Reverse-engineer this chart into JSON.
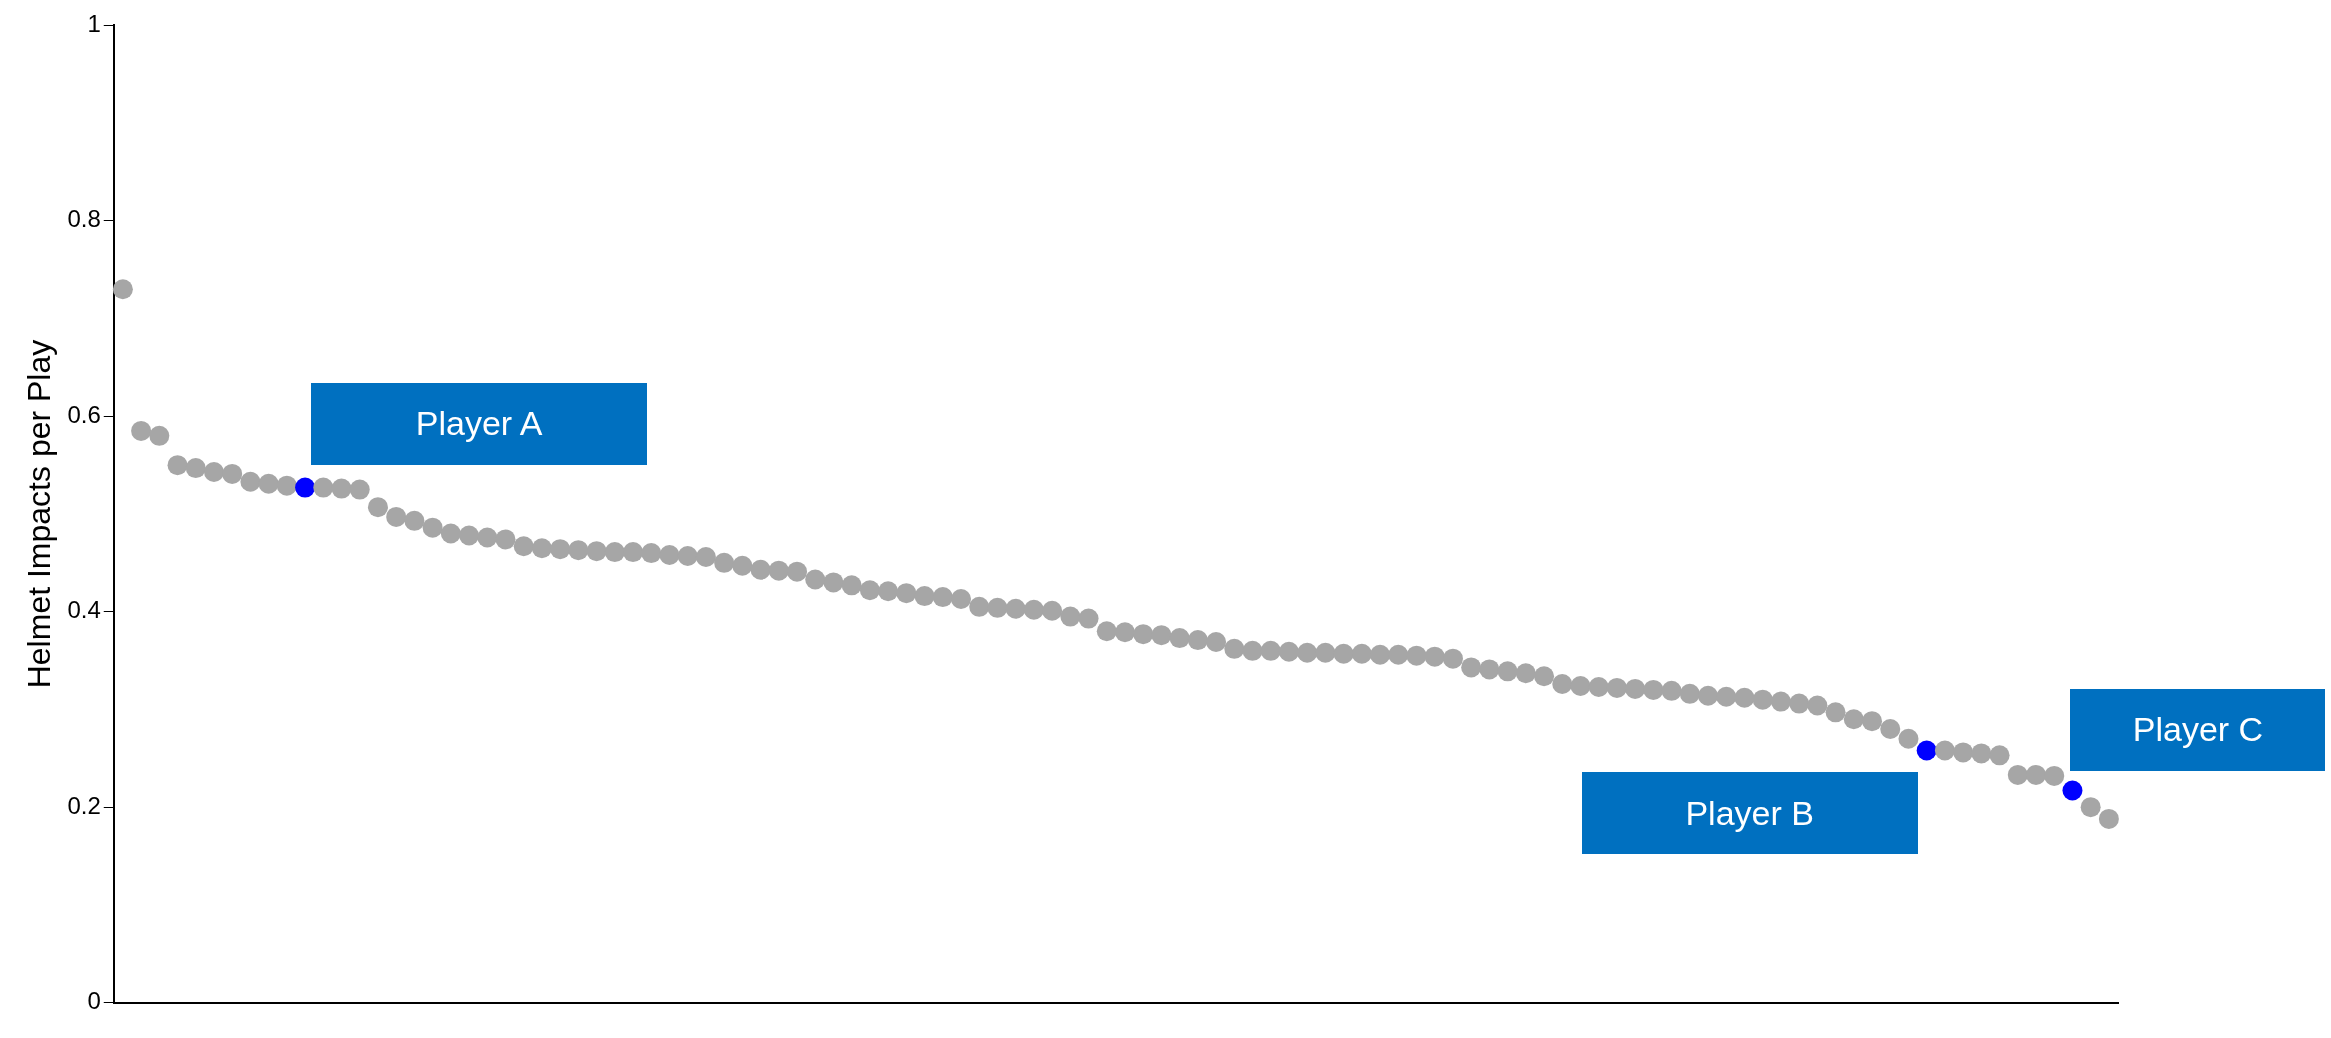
{
  "chart_data": {
    "type": "scatter",
    "ylabel": "Helmet Impacts per Play",
    "categories": [
      null,
      null,
      null,
      null,
      null,
      null,
      null,
      null,
      null,
      null,
      null,
      null,
      null,
      null,
      null,
      null,
      null,
      null,
      null,
      null,
      null,
      null,
      null,
      null,
      null,
      null,
      null,
      null,
      null,
      null,
      null,
      null,
      null,
      null,
      null,
      null,
      null,
      null,
      null,
      null,
      null,
      null,
      null,
      null,
      null,
      null,
      null,
      null,
      null,
      null,
      null,
      null,
      null,
      null,
      null,
      null,
      null,
      null,
      null,
      null,
      null,
      null,
      null,
      null,
      null,
      null,
      null,
      null,
      null,
      null,
      null,
      null,
      null,
      null,
      null,
      null,
      null,
      null,
      null,
      null,
      null,
      null,
      null,
      null,
      null,
      null,
      null,
      null,
      null,
      null,
      null,
      null,
      null,
      null,
      null,
      null,
      null,
      null,
      null,
      null,
      null,
      null,
      null,
      null,
      null,
      null,
      null,
      null,
      null,
      null
    ],
    "values": [
      0.73,
      0.585,
      0.58,
      0.55,
      0.547,
      0.543,
      0.541,
      0.533,
      0.531,
      0.529,
      0.527,
      0.527,
      0.526,
      0.525,
      0.507,
      0.497,
      0.493,
      0.486,
      0.48,
      0.478,
      0.476,
      0.474,
      0.467,
      0.465,
      0.464,
      0.463,
      0.462,
      0.461,
      0.461,
      0.46,
      0.458,
      0.457,
      0.456,
      0.45,
      0.447,
      0.443,
      0.442,
      0.441,
      0.433,
      0.43,
      0.427,
      0.422,
      0.421,
      0.419,
      0.416,
      0.415,
      0.413,
      0.405,
      0.404,
      0.403,
      0.402,
      0.401,
      0.395,
      0.393,
      0.38,
      0.379,
      0.377,
      0.376,
      0.373,
      0.371,
      0.369,
      0.362,
      0.36,
      0.36,
      0.359,
      0.358,
      0.358,
      0.357,
      0.357,
      0.356,
      0.356,
      0.355,
      0.354,
      0.352,
      0.343,
      0.341,
      0.339,
      0.337,
      0.334,
      0.326,
      0.324,
      0.323,
      0.322,
      0.321,
      0.32,
      0.319,
      0.316,
      0.314,
      0.313,
      0.312,
      0.31,
      0.308,
      0.306,
      0.304,
      0.297,
      0.29,
      0.288,
      0.28,
      0.27,
      0.258,
      0.258,
      0.256,
      0.255,
      0.253,
      0.233,
      0.233,
      0.232,
      0.217,
      0.2,
      0.188
    ],
    "colors": [
      "#a6a6a6",
      "#a6a6a6",
      "#a6a6a6",
      "#a6a6a6",
      "#a6a6a6",
      "#a6a6a6",
      "#a6a6a6",
      "#a6a6a6",
      "#a6a6a6",
      "#a6a6a6",
      "#0000ff",
      "#a6a6a6",
      "#a6a6a6",
      "#a6a6a6",
      "#a6a6a6",
      "#a6a6a6",
      "#a6a6a6",
      "#a6a6a6",
      "#a6a6a6",
      "#a6a6a6",
      "#a6a6a6",
      "#a6a6a6",
      "#a6a6a6",
      "#a6a6a6",
      "#a6a6a6",
      "#a6a6a6",
      "#a6a6a6",
      "#a6a6a6",
      "#a6a6a6",
      "#a6a6a6",
      "#a6a6a6",
      "#a6a6a6",
      "#a6a6a6",
      "#a6a6a6",
      "#a6a6a6",
      "#a6a6a6",
      "#a6a6a6",
      "#a6a6a6",
      "#a6a6a6",
      "#a6a6a6",
      "#a6a6a6",
      "#a6a6a6",
      "#a6a6a6",
      "#a6a6a6",
      "#a6a6a6",
      "#a6a6a6",
      "#a6a6a6",
      "#a6a6a6",
      "#a6a6a6",
      "#a6a6a6",
      "#a6a6a6",
      "#a6a6a6",
      "#a6a6a6",
      "#a6a6a6",
      "#a6a6a6",
      "#a6a6a6",
      "#a6a6a6",
      "#a6a6a6",
      "#a6a6a6",
      "#a6a6a6",
      "#a6a6a6",
      "#a6a6a6",
      "#a6a6a6",
      "#a6a6a6",
      "#a6a6a6",
      "#a6a6a6",
      "#a6a6a6",
      "#a6a6a6",
      "#a6a6a6",
      "#a6a6a6",
      "#a6a6a6",
      "#a6a6a6",
      "#a6a6a6",
      "#a6a6a6",
      "#a6a6a6",
      "#a6a6a6",
      "#a6a6a6",
      "#a6a6a6",
      "#a6a6a6",
      "#a6a6a6",
      "#a6a6a6",
      "#a6a6a6",
      "#a6a6a6",
      "#a6a6a6",
      "#a6a6a6",
      "#a6a6a6",
      "#a6a6a6",
      "#a6a6a6",
      "#a6a6a6",
      "#a6a6a6",
      "#a6a6a6",
      "#a6a6a6",
      "#a6a6a6",
      "#a6a6a6",
      "#a6a6a6",
      "#a6a6a6",
      "#a6a6a6",
      "#a6a6a6",
      "#a6a6a6",
      "#0000ff",
      "#a6a6a6",
      "#a6a6a6",
      "#a6a6a6",
      "#a6a6a6",
      "#a6a6a6",
      "#a6a6a6",
      "#a6a6a6",
      "#0000ff",
      "#a6a6a6",
      "#a6a6a6"
    ],
    "ylim": [
      0,
      1
    ],
    "yticks": [
      0,
      0.2,
      0.4,
      0.6,
      0.8,
      1
    ],
    "grid": false,
    "legend": false,
    "marker": "circle",
    "annotations": [
      "Player A",
      "Player B",
      "Player C"
    ]
  }
}
